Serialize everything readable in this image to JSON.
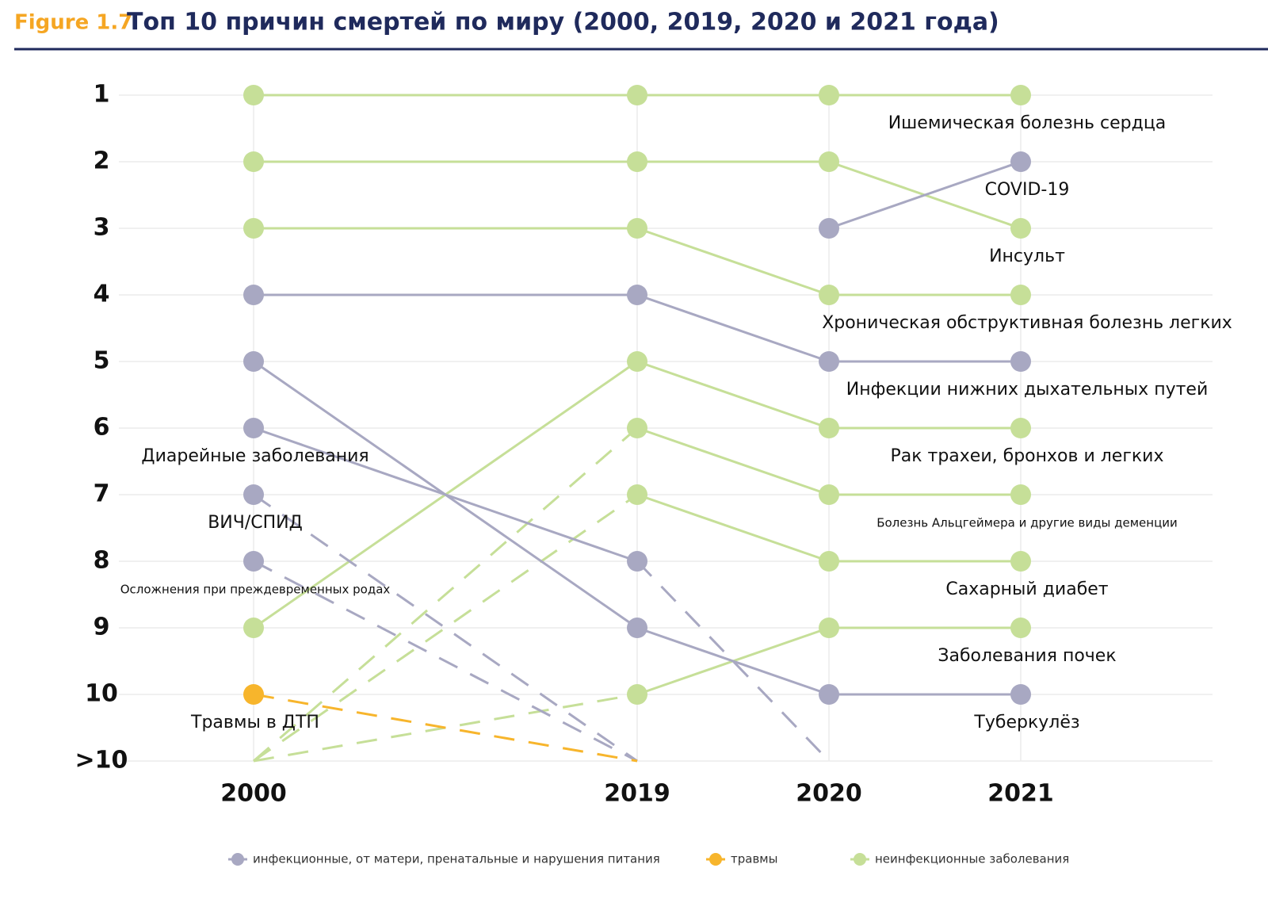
{
  "chart_data": {
    "type": "bump",
    "figure_label": "Figure 1.7",
    "title": "Топ 10 причин смертей по миру (2000, 2019, 2020 и 2021 года)",
    "categories": [
      "2000",
      "2019",
      "2020",
      "2021"
    ],
    "ylim": [
      1,
      11
    ],
    "yticks": [
      1,
      2,
      3,
      4,
      5,
      6,
      7,
      8,
      9,
      10,
      {
        "value": 11,
        "label": ">10"
      }
    ],
    "legend": [
      {
        "name": "инфекционные, от матери, пренатальные и нарушения питания",
        "color": "#a8a8c2"
      },
      {
        "name": "травмы",
        "color": "#f7b52c"
      },
      {
        "name": "неинфекционные заболевания",
        "color": "#c6df98"
      }
    ],
    "series": [
      {
        "name": "Ишемическая болезнь сердца",
        "color": "#c6df98",
        "values": [
          1,
          1,
          1,
          1
        ]
      },
      {
        "name": "Инсульт",
        "color": "#c6df98",
        "values": [
          2,
          2,
          2,
          3
        ]
      },
      {
        "name": "COVID-19",
        "color": "#a8a8c2",
        "values": [
          null,
          null,
          3,
          2
        ]
      },
      {
        "name": "Хроническая обструктивная болезнь легких",
        "color": "#c6df98",
        "values": [
          3,
          3,
          4,
          4
        ]
      },
      {
        "name": "Инфекции нижних дыхательных путей",
        "color": "#a8a8c2",
        "values": [
          4,
          4,
          5,
          5
        ]
      },
      {
        "name": "Рак трахеи, бронхов и легких",
        "color": "#c6df98",
        "values": [
          9,
          5,
          6,
          6
        ]
      },
      {
        "name": "Болезнь Альцгеймера и другие виды деменции",
        "color": "#c6df98",
        "values": [
          11,
          6,
          7,
          7
        ]
      },
      {
        "name": "Сахарный диабет",
        "color": "#c6df98",
        "values": [
          11,
          7,
          8,
          8
        ]
      },
      {
        "name": "Заболевания почек",
        "color": "#c6df98",
        "values": [
          11,
          10,
          9,
          9
        ]
      },
      {
        "name": "Туберкулёз",
        "color": "#a8a8c2",
        "values": [
          5,
          9,
          10,
          10
        ]
      },
      {
        "name": "Диарейные заболевания",
        "color": "#a8a8c2",
        "values": [
          6,
          8,
          11,
          null
        ]
      },
      {
        "name": "ВИЧ/СПИД",
        "color": "#a8a8c2",
        "values": [
          7,
          11,
          null,
          null
        ]
      },
      {
        "name": "Осложнения при преждевременных родах",
        "color": "#a8a8c2",
        "values": [
          8,
          11,
          null,
          null
        ]
      },
      {
        "name": "Травмы в ДТП",
        "color": "#f7b52c",
        "values": [
          10,
          11,
          null,
          null
        ]
      }
    ]
  }
}
